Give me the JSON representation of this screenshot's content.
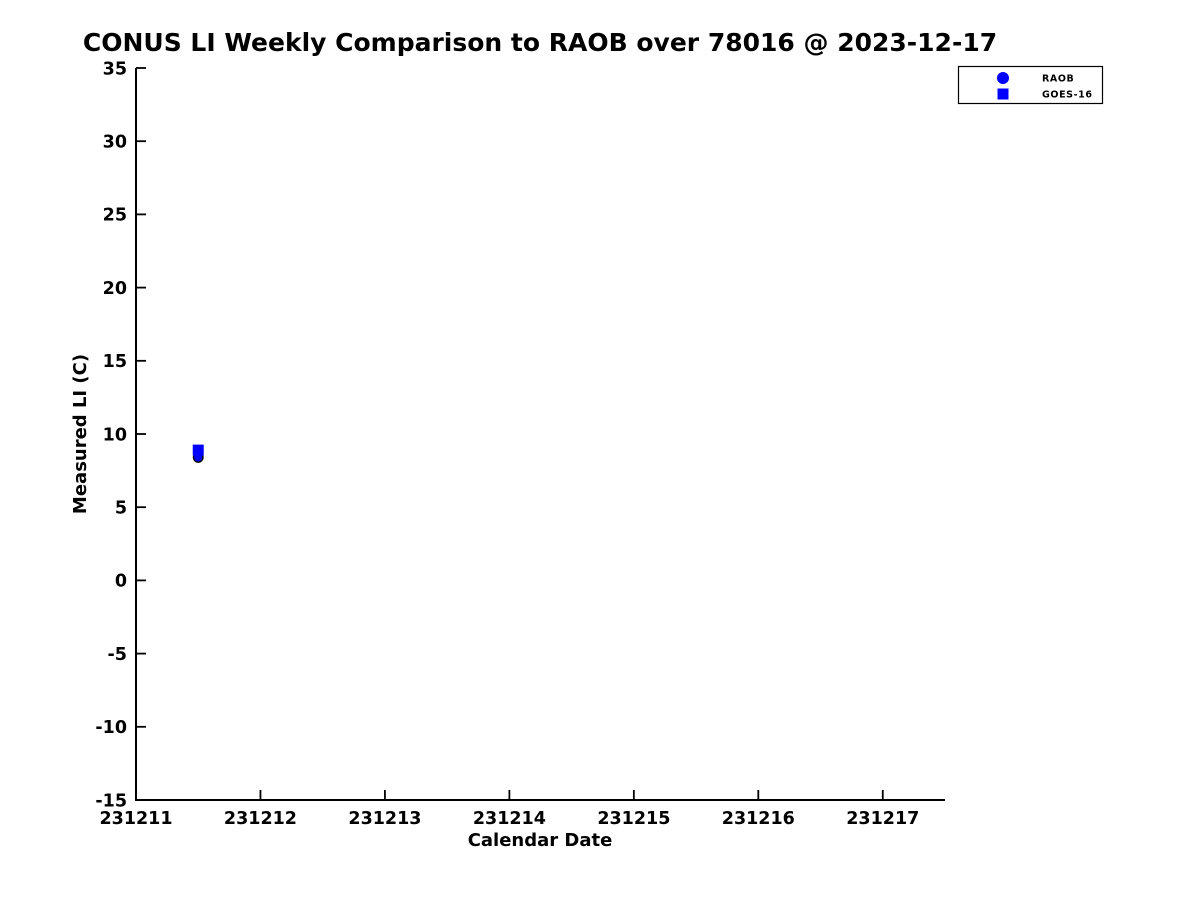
{
  "chart_data": {
    "type": "scatter",
    "title": "CONUS LI Weekly Comparison to RAOB over 78016 @ 2023-12-17",
    "xlabel": "Calendar Date",
    "ylabel": "Measured LI (C)",
    "xlim": [
      231211,
      231217.5
    ],
    "ylim": [
      -15,
      35
    ],
    "x_ticks": [
      231211,
      231212,
      231213,
      231214,
      231215,
      231216,
      231217
    ],
    "y_ticks": [
      35,
      30,
      25,
      20,
      15,
      10,
      5,
      0,
      -5,
      -10,
      -15
    ],
    "grid": false,
    "background_color": "#ffffff",
    "axis_color": "#000000",
    "legend_position": "top-right",
    "series": [
      {
        "name": "RAOB",
        "marker": "circle",
        "color": "#0000ff",
        "edge_color": "#000000",
        "points": [
          {
            "x": 231211.5,
            "y": 8.4
          }
        ]
      },
      {
        "name": "GOES-16",
        "marker": "square",
        "color": "#0000ff",
        "edge_color": null,
        "points": [
          {
            "x": 231211.5,
            "y": 8.9
          }
        ]
      }
    ]
  }
}
